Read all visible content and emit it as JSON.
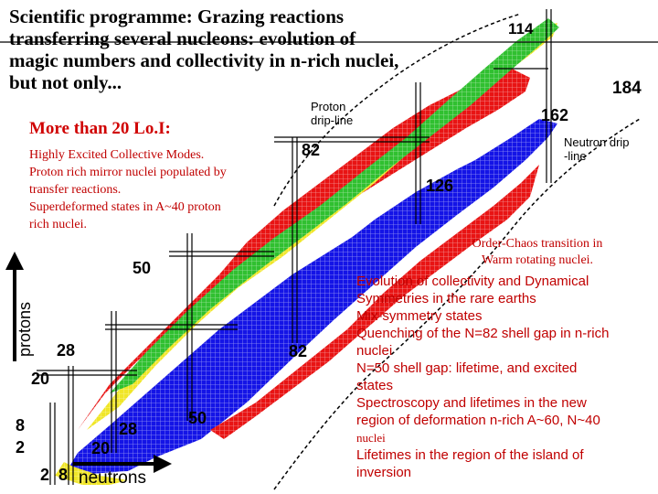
{
  "title": "Scientific programme: Grazing reactions\ntransferring several nucleons: evolution of\nmagic numbers and collectivity in n-rich nuclei,\nbut not only...",
  "lois_heading": "More than 20 Lo.I:",
  "left_topics": [
    "Highly Excited Collective Modes.",
    "Proton rich mirror nuclei populated by",
    "transfer reactions.",
    "Superdeformed states in A~40 proton",
    "rich nuclei."
  ],
  "proton_dripline_label": [
    "Proton",
    "drip-line"
  ],
  "neutron_dripline_label": [
    "Neutron drip",
    "-line"
  ],
  "order_chaos": [
    "Order-Chaos transition in",
    "Warm rotating nuclei."
  ],
  "axis": {
    "y_label": "protons",
    "x_label": "neutrons"
  },
  "magic_numbers": {
    "n114": "114",
    "n184": "184",
    "n162": "162",
    "n82_top": "82",
    "n126": "126",
    "n50_top": "50",
    "n28_left": "28",
    "n82_mid": "82",
    "n20_left": "20",
    "n8_left": "8",
    "n2_left": "2",
    "n28_bottom": "28",
    "n50_bottom": "50",
    "n20_bottom": "20",
    "n2_bottom": "2",
    "n8_bottom": "8"
  },
  "right_topics": [
    "Evolution of collectivity and Dynamical",
    "Symmetries in the rare earths",
    "Mix-symmetry states",
    "Quenching of the N=82 shell gap in n-rich",
    "nuclei",
    "N=50 shell gap: lifetime, and excited",
    "states",
    "Spectroscopy and lifetimes in the new",
    "region of deformation n-rich A~60, N~40",
    "nuclei",
    "Lifetimes in the region of the island of",
    "inversion"
  ],
  "colors": {
    "blue": "#1414e6",
    "red": "#e81414",
    "yellow": "#f0e628",
    "green": "#30c030",
    "topic_red": "#c00000",
    "text": "#000000"
  }
}
